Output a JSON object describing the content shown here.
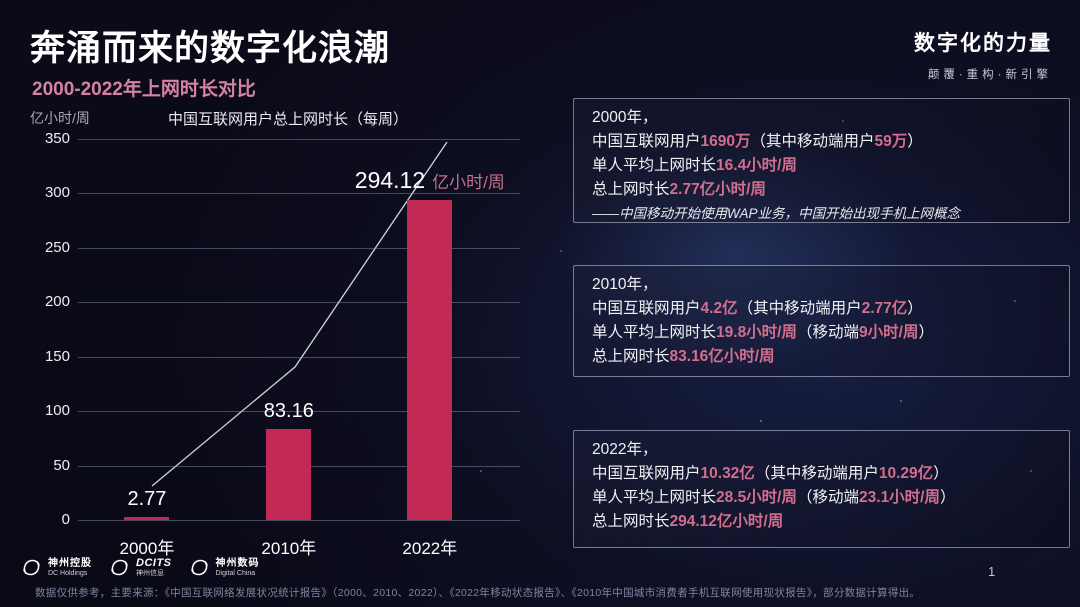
{
  "slide": {
    "title": "奔涌而来的数字化浪潮",
    "subtitle": "2000-2022年上网时长对比",
    "brand_title": "数字化的力量",
    "brand_tagline": "颠覆·重构·新引擎",
    "page_number": "1"
  },
  "chart_data": {
    "type": "bar",
    "title": "中国互联网用户总上网时长（每周）",
    "ylabel": "亿小时/周",
    "xlabel": "",
    "categories": [
      "2000年",
      "2010年",
      "2022年"
    ],
    "values": [
      2.77,
      83.16,
      294.12
    ],
    "value_labels": [
      {
        "num": "2.77",
        "unit": ""
      },
      {
        "num": "83.16",
        "unit": ""
      },
      {
        "num": "294.12",
        "unit": "亿小时/周"
      }
    ],
    "ylim": [
      0,
      350
    ],
    "yticks": [
      350,
      300,
      250,
      200,
      150,
      100,
      50,
      0
    ],
    "grid": true,
    "legend_position": "none",
    "bar_color": "#c22a55",
    "trend_line": "decorative rising line from 2000 bar to upper right"
  },
  "panels": [
    {
      "year": "2000年，",
      "lines": [
        [
          {
            "t": "中国互联网用户"
          },
          {
            "t": "1690万",
            "em": true
          },
          {
            "t": "（其中移动端用户"
          },
          {
            "t": "59万",
            "em": true
          },
          {
            "t": "）"
          }
        ],
        [
          {
            "t": "单人平均上网时长"
          },
          {
            "t": "16.4小时/周",
            "em": true
          }
        ],
        [
          {
            "t": "总上网时长"
          },
          {
            "t": "2.77亿小时/周",
            "em": true
          }
        ]
      ],
      "note": "——中国移动开始使用WAP业务，中国开始出现手机上网概念"
    },
    {
      "year": "2010年，",
      "lines": [
        [
          {
            "t": "中国互联网用户"
          },
          {
            "t": "4.2亿",
            "em": true
          },
          {
            "t": "（其中移动端用户"
          },
          {
            "t": "2.77亿",
            "em": true
          },
          {
            "t": "）"
          }
        ],
        [
          {
            "t": "单人平均上网时长"
          },
          {
            "t": "19.8小时/周",
            "em": true
          },
          {
            "t": "（移动端"
          },
          {
            "t": "9小时/周",
            "em": true
          },
          {
            "t": "）"
          }
        ],
        [
          {
            "t": "总上网时长"
          },
          {
            "t": "83.16亿小时/周",
            "em": true
          }
        ]
      ],
      "note": ""
    },
    {
      "year": "2022年，",
      "lines": [
        [
          {
            "t": "中国互联网用户"
          },
          {
            "t": "10.32亿",
            "em": true
          },
          {
            "t": "（其中移动端用户"
          },
          {
            "t": "10.29亿",
            "em": true
          },
          {
            "t": "）"
          }
        ],
        [
          {
            "t": "单人平均上网时长"
          },
          {
            "t": "28.5小时/周",
            "em": true
          },
          {
            "t": "（移动端"
          },
          {
            "t": "23.1小时/周",
            "em": true
          },
          {
            "t": "）"
          }
        ],
        [
          {
            "t": "总上网时长"
          },
          {
            "t": "294.12亿小时/周",
            "em": true
          }
        ]
      ],
      "note": ""
    }
  ],
  "footer": {
    "logos": [
      {
        "line1": "神州控股",
        "line2": "DC Holdings"
      },
      {
        "line1": "DCITS",
        "line2": "神州信息"
      },
      {
        "line1": "神州数码",
        "line2": "Digital China"
      }
    ],
    "source": "数据仅供参考，主要来源：《中国互联网络发展状况统计报告》（2000、2010、2022）、《2022年移动状态报告》、《2010年中国城市消费者手机互联网使用现状报告》，部分数据计算得出。"
  },
  "colors": {
    "accent_pink": "#d26e8e",
    "subtitle_pink": "#d682a2",
    "bar_crimson": "#c22a55",
    "background": "#0a0916"
  }
}
